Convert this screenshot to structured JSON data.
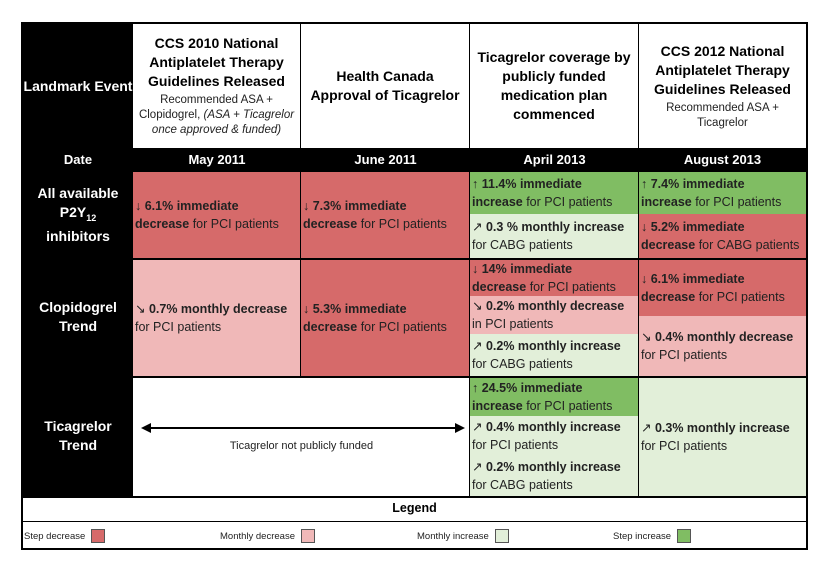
{
  "header": {
    "landmark_label": "Landmark Event",
    "date_label": "Date",
    "events": [
      {
        "title": "CCS 2010 National Antiplatelet Therapy Guidelines Released",
        "note_plain": "Recommended ASA + Clopidogrel, ",
        "note_italic": "(ASA + Ticagrelor once approved & funded)"
      },
      {
        "title": "Health Canada Approval of Ticagrelor",
        "note_plain": "",
        "note_italic": ""
      },
      {
        "title": "Ticagrelor coverage by publicly funded medication plan commenced",
        "note_plain": "",
        "note_italic": ""
      },
      {
        "title": "CCS 2012 National Antiplatelet Therapy Guidelines Released",
        "note_plain": "Recommended ASA + Ticagrelor",
        "note_italic": ""
      }
    ],
    "dates": [
      "May 2011",
      "June 2011",
      "April 2013",
      "August 2013"
    ]
  },
  "rows": [
    {
      "label_main": "All available P2Y",
      "label_sub": "12",
      "label_tail": " inhibitors"
    },
    {
      "label_main": "Clopidogrel Trend",
      "label_sub": "",
      "label_tail": ""
    },
    {
      "label_main": "Ticagrelor Trend",
      "label_sub": "",
      "label_tail": ""
    }
  ],
  "cells": {
    "p2y_may": {
      "arrow": "↓",
      "bold": "6.1% immediate",
      "bold2": "decrease",
      "rest": " for PCI patients"
    },
    "p2y_june": {
      "arrow": "↓",
      "bold": "7.3% immediate",
      "bold2": "decrease",
      "rest": " for PCI patients"
    },
    "p2y_apr_a": {
      "arrow": "↑",
      "bold": "11.4% immediate",
      "bold2": "increase",
      "rest": " for PCI patients"
    },
    "p2y_apr_b": {
      "arrow": "↗",
      "bold": "0.3 % monthly increase",
      "bold2": "",
      "rest": "for CABG patients"
    },
    "p2y_aug_a": {
      "arrow": "↑",
      "bold": "7.4% immediate",
      "bold2": "increase",
      "rest": " for PCI patients"
    },
    "p2y_aug_b": {
      "arrow": "↓",
      "bold": "5.2% immediate",
      "bold2": "decrease",
      "rest": " for CABG patients"
    },
    "clo_may": {
      "arrow": "↘",
      "bold": "0.7% monthly decrease",
      "bold2": "",
      "rest": "for PCI patients"
    },
    "clo_june": {
      "arrow": "↓",
      "bold": "5.3% immediate",
      "bold2": "decrease",
      "rest": " for PCI patients"
    },
    "clo_apr_a": {
      "arrow": "↓",
      "bold": "14% immediate",
      "bold2": "decrease",
      "rest": " for PCI patients"
    },
    "clo_apr_b": {
      "arrow": "↘",
      "bold": "0.2% monthly decrease",
      "bold2": "",
      "rest": "in PCI patients"
    },
    "clo_apr_c": {
      "arrow": "↗",
      "bold": "0.2% monthly increase",
      "bold2": "",
      "rest": "for CABG patients"
    },
    "clo_aug_a": {
      "arrow": "↓",
      "bold": "6.1% immediate",
      "bold2": "decrease",
      "rest": " for PCI patients"
    },
    "clo_aug_b": {
      "arrow": "↘",
      "bold": "0.4% monthly decrease",
      "bold2": "",
      "rest": "for PCI patients"
    },
    "tic_unfunded": "Ticagrelor not publicly funded",
    "tic_apr_a": {
      "arrow": "↑",
      "bold": "24.5% immediate",
      "bold2": "increase",
      "rest": " for PCI patients"
    },
    "tic_apr_b": {
      "arrow": "↗",
      "bold": "0.4% monthly increase",
      "bold2": "",
      "rest": "for PCI patients"
    },
    "tic_apr_c": {
      "arrow": "↗",
      "bold": "0.2% monthly increase",
      "bold2": "",
      "rest": "for CABG patients"
    },
    "tic_aug": {
      "arrow": "↗",
      "bold": "0.3% monthly increase",
      "bold2": "",
      "rest": "for PCI patients"
    }
  },
  "legend": {
    "title": "Legend",
    "items": [
      {
        "label": "Step decrease",
        "color": "#d66a6a"
      },
      {
        "label": "Monthly decrease",
        "color": "#f0b8b8"
      },
      {
        "label": "Monthly increase",
        "color": "#e2efd9"
      },
      {
        "label": "Step increase",
        "color": "#80bd63"
      }
    ]
  },
  "colors": {
    "step_decrease": "#d66a6a",
    "monthly_decrease": "#f0b8b8",
    "monthly_increase": "#e2efd9",
    "step_increase": "#80bd63",
    "label_background": "#000000"
  }
}
